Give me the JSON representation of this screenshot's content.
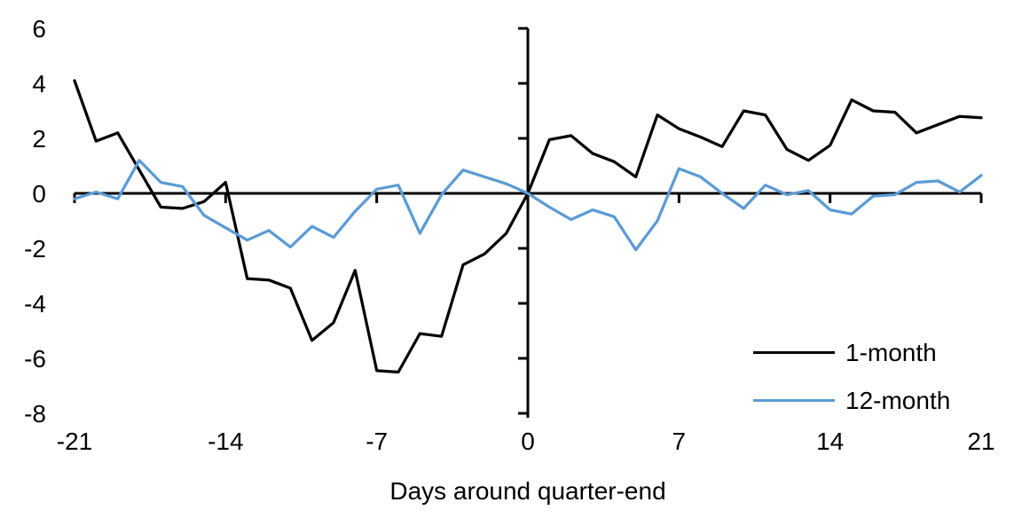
{
  "chart_data": {
    "type": "line",
    "title": "",
    "xlabel": "Days around quarter-end",
    "ylabel": "",
    "grid": false,
    "xlim": [
      -21,
      21
    ],
    "ylim": [
      -8,
      6
    ],
    "x_ticks": [
      -21,
      -14,
      -7,
      0,
      7,
      14,
      21
    ],
    "y_ticks": [
      6,
      4,
      2,
      0,
      -2,
      -4,
      -6,
      -8
    ],
    "legend_position": "inside-right-lower",
    "x": [
      -21,
      -20,
      -19,
      -18,
      -17,
      -16,
      -15,
      -14,
      -13,
      -12,
      -11,
      -10,
      -9,
      -8,
      -7,
      -6,
      -5,
      -4,
      -3,
      -2,
      -1,
      0,
      1,
      2,
      3,
      4,
      5,
      6,
      7,
      8,
      9,
      10,
      11,
      12,
      13,
      14,
      15,
      16,
      17,
      18,
      19,
      20,
      21
    ],
    "series": [
      {
        "name": "1-month",
        "color": "#000000",
        "values": [
          4.1,
          1.9,
          2.2,
          0.85,
          -0.5,
          -0.55,
          -0.3,
          0.4,
          -3.1,
          -3.15,
          -3.45,
          -5.35,
          -4.7,
          -2.8,
          -6.45,
          -6.5,
          -5.1,
          -5.2,
          -2.6,
          -2.2,
          -1.45,
          0,
          1.95,
          2.1,
          1.45,
          1.15,
          0.6,
          2.85,
          2.35,
          2.05,
          1.7,
          3.0,
          2.85,
          1.6,
          1.2,
          1.75,
          3.4,
          3.0,
          2.95,
          2.2,
          2.5,
          2.8,
          2.75
        ]
      },
      {
        "name": "12-month",
        "color": "#5B9BD5",
        "values": [
          -0.2,
          0.05,
          -0.2,
          1.2,
          0.4,
          0.25,
          -0.8,
          -1.25,
          -1.7,
          -1.35,
          -1.95,
          -1.2,
          -1.6,
          -0.65,
          0.15,
          0.3,
          -1.45,
          -0.05,
          0.85,
          0.6,
          0.35,
          0,
          -0.5,
          -0.95,
          -0.6,
          -0.85,
          -2.05,
          -1.0,
          0.9,
          0.6,
          0.0,
          -0.55,
          0.3,
          -0.05,
          0.1,
          -0.6,
          -0.75,
          -0.1,
          -0.05,
          0.4,
          0.45,
          0.05,
          0.65
        ]
      }
    ]
  }
}
